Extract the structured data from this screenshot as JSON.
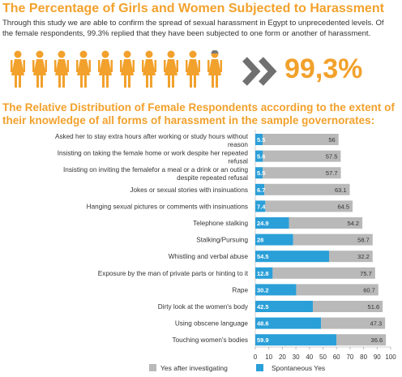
{
  "header": {
    "title": "The Percentage of Girls and Women Subjected to Harassment",
    "intro": "Through this study we are able to confirm the spread of sexual harassment in Egypt to unprecedented levels. Of the female respondents, 99.3% replied that they have been subjected to one form or another of harassment.",
    "percentage": "99,3%",
    "icon": "woman-figure-icon",
    "icon_count": 10
  },
  "colors": {
    "accent": "#f2a12c",
    "gray_series": "#b9b9b9",
    "blue_series": "#2a9fd8",
    "partial_icon": "#7a7a7a"
  },
  "chart_data": {
    "type": "bar",
    "orientation": "horizontal",
    "stacked": true,
    "title": "The Relative Distribution of Female Respondents according to the extent of their knowledge of all forms of harassment in the sample governorates:",
    "categories": [
      "Asked her to stay extra hours after working or study hours without reason",
      "Insisting on taking the female home or work despite her repeated refusal",
      "Insisting on inviting the femalefor a meal or a drink or an outing despite repeated refusal",
      "Jokes or sexual stories with insinuations",
      "Hanging sexual pictures or comments with insinuations",
      "Telephone stalking",
      "Stalking/Pursuing",
      "Whistling and verbal abuse",
      "Exposure by the man of private parts or hinting to it",
      "Rape",
      "Dirty look at the women's body",
      "Using obscene language",
      "Touching women's bodies"
    ],
    "series": [
      {
        "name": "Spontaneous Yes",
        "color": "#2a9fd8",
        "values": [
          5.5,
          5.6,
          5.5,
          6.7,
          7.4,
          24.9,
          28,
          54.5,
          12.8,
          30.2,
          42.5,
          48.6,
          59.9
        ],
        "labels": [
          "5.5",
          "5.6",
          "5.5",
          "6.7",
          "7.4",
          "24.9",
          "28",
          "54.5",
          "12.8",
          "30.2",
          "42.5",
          "48.6",
          "59.9"
        ]
      },
      {
        "name": "Yes after investigating",
        "color": "#b9b9b9",
        "values": [
          56,
          57.5,
          57.7,
          63.1,
          64.5,
          54.2,
          58.7,
          32.2,
          75.7,
          60.7,
          51.6,
          47.3,
          36.6
        ],
        "labels": [
          "56",
          "57.5",
          "57.7",
          "63.1",
          "64.5",
          "54.2",
          "58.7",
          "32.2",
          "75.7",
          "60.7",
          "51.6",
          "47.3",
          "36.6"
        ]
      }
    ],
    "xlim": [
      0,
      100
    ],
    "xticks": [
      "0",
      "10",
      "20",
      "30",
      "40",
      "50",
      "60",
      "70",
      "80",
      "90",
      "100"
    ],
    "legend": {
      "position": "bottom",
      "items": [
        "Yes after investigating",
        "Spontaneous Yes"
      ]
    }
  }
}
